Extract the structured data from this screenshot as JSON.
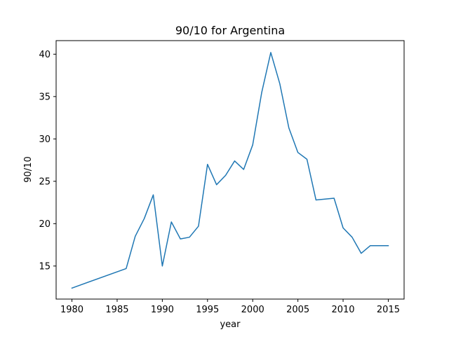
{
  "chart_data": {
    "type": "line",
    "title": "90/10 for Argentina",
    "xlabel": "year",
    "ylabel": "90/10",
    "xlim": [
      1978.25,
      2016.75
    ],
    "ylim": [
      11.1,
      41.6
    ],
    "x_ticks": [
      1980,
      1985,
      1990,
      1995,
      2000,
      2005,
      2010,
      2015
    ],
    "y_ticks": [
      15,
      20,
      25,
      30,
      35,
      40
    ],
    "grid": false,
    "legend": "none",
    "series": [
      {
        "color": "#1f77b4",
        "x": [
          1980,
          1986,
          1987,
          1988,
          1989,
          1990,
          1991,
          1992,
          1993,
          1994,
          1995,
          1996,
          1997,
          1998,
          1999,
          2000,
          2001,
          2002,
          2003,
          2004,
          2005,
          2006,
          2007,
          2008,
          2009,
          2010,
          2011,
          2012,
          2013,
          2014,
          2015
        ],
        "y": [
          12.4,
          14.7,
          18.5,
          20.6,
          23.4,
          15.0,
          20.2,
          18.2,
          18.4,
          19.7,
          27.0,
          24.6,
          25.7,
          27.4,
          26.4,
          29.3,
          35.5,
          40.2,
          36.5,
          31.3,
          28.4,
          27.6,
          22.8,
          22.9,
          23.0,
          19.5,
          18.4,
          16.5,
          17.4,
          17.4,
          17.4
        ]
      }
    ]
  }
}
